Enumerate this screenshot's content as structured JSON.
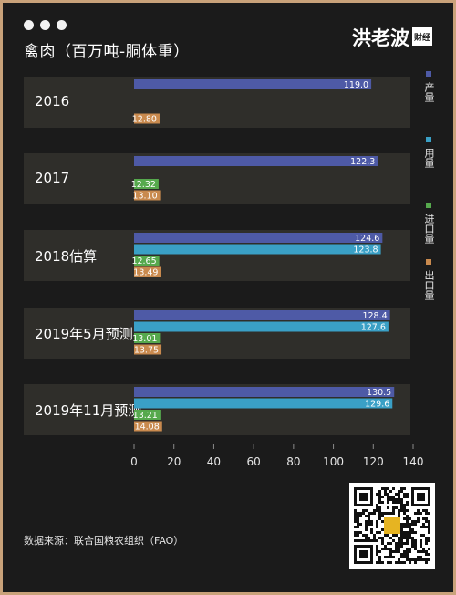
{
  "title": "禽肉（百万吨-胴体重）",
  "logo": {
    "text": "洪老波",
    "sub": "财经"
  },
  "source": "数据来源：联合国粮农组织（FAO）",
  "colors": {
    "production": "#4e5aa6",
    "consumption": "#3aa0c6",
    "imports": "#56a94d",
    "exports": "#c98a4e"
  },
  "legend": [
    {
      "label": "产量",
      "color": "#4e5aa6"
    },
    {
      "label": "用量",
      "color": "#3aa0c6"
    },
    {
      "label": "进口量",
      "color": "#56a94d"
    },
    {
      "label": "出口量",
      "color": "#c98a4e"
    }
  ],
  "chart_data": {
    "type": "bar",
    "orientation": "horizontal",
    "title": "禽肉（百万吨-胴体重）",
    "categories": [
      "2016",
      "2017",
      "2018估算",
      "2019年5月预测",
      "2019年11月预测"
    ],
    "series": [
      {
        "name": "产量",
        "values": [
          119.0,
          122.3,
          124.6,
          128.4,
          130.5
        ],
        "labels": [
          "119.0",
          "122.3",
          "124.6",
          "128.4",
          "130.5"
        ]
      },
      {
        "name": "用量",
        "values": [
          null,
          null,
          123.8,
          127.6,
          129.6
        ],
        "labels": [
          "",
          "",
          "123.8",
          "127.6",
          "129.6"
        ]
      },
      {
        "name": "进口量",
        "values": [
          null,
          12.32,
          12.65,
          13.01,
          13.21
        ],
        "labels": [
          "",
          "12.32",
          "12.65",
          "13.01",
          "13.21"
        ]
      },
      {
        "name": "出口量",
        "values": [
          12.8,
          13.1,
          13.49,
          13.75,
          14.08
        ],
        "labels": [
          "12.80",
          "13.10",
          "13.49",
          "13.75",
          "14.08"
        ]
      }
    ],
    "xlim": [
      0,
      140
    ],
    "xticks": [
      "0",
      "20",
      "40",
      "60",
      "80",
      "100",
      "120",
      "140"
    ],
    "grid": false,
    "legend_position": "right"
  }
}
